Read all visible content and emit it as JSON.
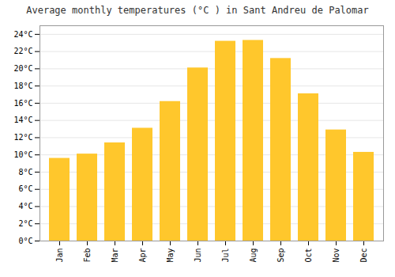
{
  "chart_data": {
    "type": "bar",
    "title": "Average monthly temperatures (°C ) in Sant Andreu de Palomar",
    "categories": [
      "Jan",
      "Feb",
      "Mar",
      "Apr",
      "May",
      "Jun",
      "Jul",
      "Aug",
      "Sep",
      "Oct",
      "Nov",
      "Dec"
    ],
    "values": [
      9.6,
      10.1,
      11.4,
      13.1,
      16.2,
      20.1,
      23.2,
      23.3,
      21.2,
      17.1,
      12.9,
      10.3
    ],
    "color": "#FFC72C",
    "ylim": [
      0,
      25
    ],
    "yticks": [
      {
        "value": 0,
        "label": "0°C"
      },
      {
        "value": 2,
        "label": "2°C"
      },
      {
        "value": 4,
        "label": "4°C"
      },
      {
        "value": 6,
        "label": "6°C"
      },
      {
        "value": 8,
        "label": "8°C"
      },
      {
        "value": 10,
        "label": "10°C"
      },
      {
        "value": 12,
        "label": "12°C"
      },
      {
        "value": 14,
        "label": "14°C"
      },
      {
        "value": 16,
        "label": "16°C"
      },
      {
        "value": 18,
        "label": "18°C"
      },
      {
        "value": 20,
        "label": "20°C"
      },
      {
        "value": 22,
        "label": "22°C"
      },
      {
        "value": 24,
        "label": "24°C"
      }
    ],
    "grid": true
  }
}
